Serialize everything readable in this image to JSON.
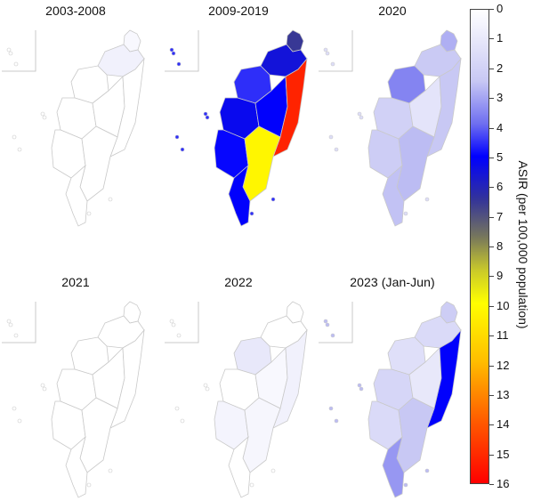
{
  "colors": {
    "scale_stops": [
      "#ffffff",
      "#c8c8f4",
      "#6f6ff0",
      "#0000ff",
      "#33339a",
      "#77775c",
      "#c9c92a",
      "#ffff00",
      "#ffbf00",
      "#ff5a00",
      "#ff0000"
    ],
    "outline": "#c9c9c9"
  },
  "panels": [
    {
      "title": "2003-2008",
      "regions": {
        "north": 0.6,
        "northtip": 0.3,
        "west_n": 0,
        "west_c": 0,
        "center": 0,
        "east": 0,
        "west_s": 0,
        "south": 0,
        "southtip": 0,
        "islands": 0
      }
    },
    {
      "title": "2009-2019",
      "regions": {
        "north": 5.5,
        "northtip": 6.5,
        "west_n": 4.5,
        "west_c": 5.2,
        "center": 5.0,
        "east": 15.2,
        "west_s": 4.9,
        "south": 10.2,
        "southtip": 5.0,
        "islands": 4.5
      }
    },
    {
      "title": "2020",
      "regions": {
        "north": 2.3,
        "northtip": 2.8,
        "west_n": 3.5,
        "west_c": 2.0,
        "center": 1.2,
        "east": 2.4,
        "west_s": 2.2,
        "south": 2.6,
        "southtip": 2.5,
        "islands": 1.5
      }
    },
    {
      "title": "2021",
      "regions": {
        "north": 0,
        "northtip": 0,
        "west_n": 0,
        "west_c": 0,
        "center": 0,
        "east": 0,
        "west_s": 0,
        "south": 0,
        "southtip": 0,
        "islands": 0
      }
    },
    {
      "title": "2022",
      "regions": {
        "north": 0,
        "northtip": 0,
        "west_n": 1.0,
        "west_c": 0,
        "center": 0.3,
        "east": 0.6,
        "west_s": 0.5,
        "south": 0.4,
        "southtip": 0,
        "islands": 0
      }
    },
    {
      "title": "2023 (Jan-Jun)",
      "regions": {
        "north": 1.6,
        "northtip": 2.2,
        "west_n": 1.4,
        "west_c": 1.8,
        "center": 1.0,
        "east": 5.0,
        "west_s": 1.6,
        "south": 2.4,
        "southtip": 3.2,
        "islands": 2.6
      }
    }
  ],
  "legend": {
    "title": "ASIR (per 100,000 population)",
    "ticks": [
      "0",
      "1",
      "2",
      "3",
      "4",
      "5",
      "6",
      "7",
      "8",
      "9",
      "10",
      "11",
      "12",
      "13",
      "14",
      "15",
      "16"
    ]
  }
}
